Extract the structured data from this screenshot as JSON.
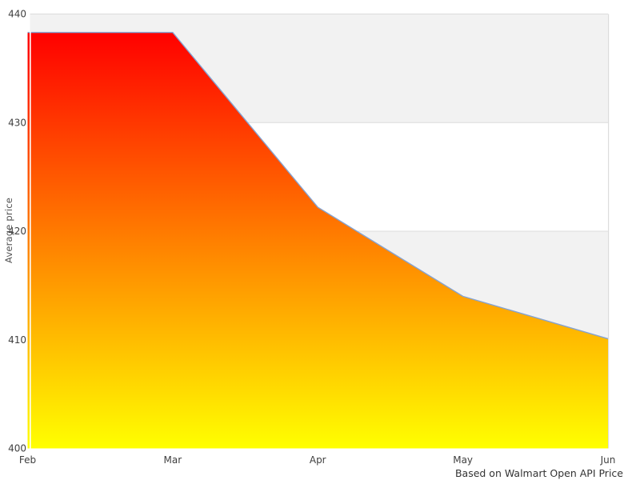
{
  "chart_data": {
    "type": "area",
    "title": "",
    "x": [
      "Feb",
      "Mar",
      "Apr",
      "May",
      "Jun"
    ],
    "values": [
      438.3,
      438.3,
      422.2,
      414.0,
      410.1
    ],
    "series_name": "Average price",
    "xlabel": "",
    "ylabel": "Average price",
    "caption": "Based on Walmart Open API Price",
    "ylim": [
      400,
      440
    ],
    "yticks": [
      440,
      430,
      420,
      410,
      400
    ],
    "grid": "horizontal-bands",
    "legend": "none",
    "colors": {
      "gradient_top": "#ff0000",
      "gradient_bottom": "#ffff00",
      "line": "#85a3d1",
      "band_shaded": "#f2f2f2",
      "band_plain": "#ffffff",
      "band_border": "#dcdcdc",
      "tick_text": "#3f3f3f",
      "axis_title_text": "#555555",
      "caption_text": "#333333",
      "background": "#ffffff"
    }
  }
}
